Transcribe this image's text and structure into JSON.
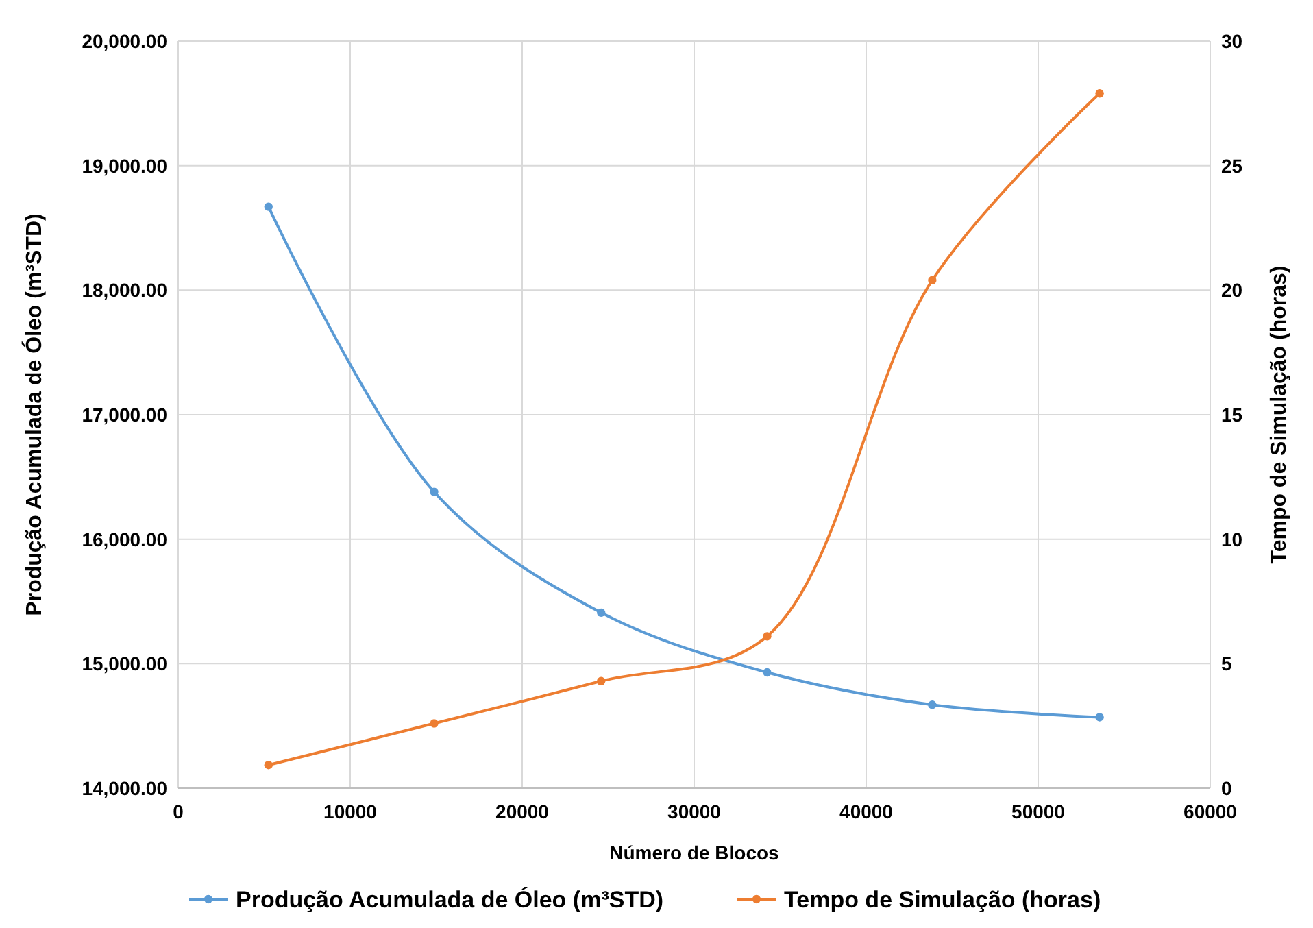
{
  "chart_data": {
    "type": "line",
    "xlabel": "Número de Blocos",
    "ylabel": "Produção Acumulada de Óleo (m³STD)",
    "y2label": "Tempo de Simulação (horas)",
    "x": [
      5250,
      14880,
      24590,
      34240,
      43840,
      53570
    ],
    "series": [
      {
        "name": "Produção Acumulada de Óleo (m³STD)",
        "color": "#5b9bd5",
        "values": [
          18670,
          16380,
          15410,
          14930,
          14670,
          14570
        ]
      },
      {
        "name": "Tempo de Simulação (horas)",
        "color": "#ed7d31",
        "axis": "y2",
        "values": [
          0.93,
          2.6,
          4.3,
          6.1,
          20.4,
          27.9
        ]
      }
    ],
    "xlim": [
      0,
      60000
    ],
    "xticks": [
      0,
      10000,
      20000,
      30000,
      40000,
      50000,
      60000
    ],
    "ylim": [
      14000,
      20000
    ],
    "yticks": [
      {
        "value": 14000,
        "label": "14,000.00"
      },
      {
        "value": 15000,
        "label": "15,000.00"
      },
      {
        "value": 16000,
        "label": "16,000.00"
      },
      {
        "value": 17000,
        "label": "17,000.00"
      },
      {
        "value": 18000,
        "label": "18,000.00"
      },
      {
        "value": 19000,
        "label": "19,000.00"
      },
      {
        "value": 20000,
        "label": "20,000.00"
      }
    ],
    "y2lim": [
      0,
      30
    ],
    "y2ticks": [
      0,
      5,
      10,
      15,
      20,
      25,
      30
    ],
    "grid": true,
    "legend": "bottom",
    "marker": "circle",
    "line_style": "solid"
  }
}
